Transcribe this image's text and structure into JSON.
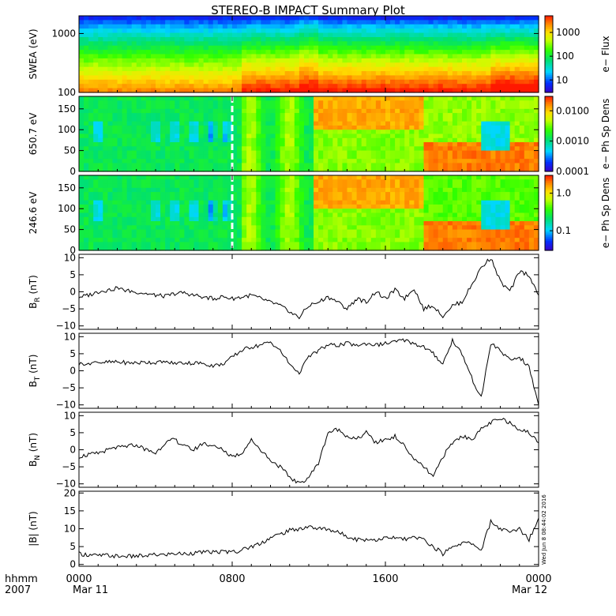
{
  "title": "STEREO-B IMPACT Summary Plot",
  "footer": {
    "time_label": "hhmm",
    "year_label": "2007",
    "start_date": "Mar 11",
    "end_date": "Mar 12",
    "timestamp": "Wed Jun 8 08:44:02 2016"
  },
  "chart_data": [
    {
      "type": "heatmap",
      "panel": "swea",
      "ylabel": "SWEA (eV)",
      "yscale": "log",
      "ylim": [
        100,
        2000
      ],
      "yticks": [
        {
          "v": 100,
          "label": "100"
        },
        {
          "v": 1000,
          "label": "1000"
        }
      ],
      "colorbar": {
        "label": "e− Flux",
        "scale": "log",
        "range": [
          3,
          5000
        ],
        "ticks": [
          {
            "v": 10,
            "label": "10"
          },
          {
            "v": 100,
            "label": "100"
          },
          {
            "v": 1000,
            "label": "1000"
          }
        ]
      },
      "grid": false
    },
    {
      "type": "heatmap",
      "panel": "pad650",
      "ylabel": "650.7 eV",
      "ylim": [
        0,
        180
      ],
      "yticks": [
        {
          "v": 0,
          "label": "0"
        },
        {
          "v": 50,
          "label": "50"
        },
        {
          "v": 100,
          "label": "100"
        },
        {
          "v": 150,
          "label": "150"
        }
      ],
      "colorbar": {
        "label": "e− Ph Sp Dens",
        "scale": "log",
        "range": [
          0.0001,
          0.03
        ],
        "ticks": [
          {
            "v": 0.0001,
            "label": "0.0001"
          },
          {
            "v": 0.001,
            "label": "0.0010"
          },
          {
            "v": 0.01,
            "label": "0.0100"
          }
        ]
      },
      "data_gap_hour": 8.0
    },
    {
      "type": "heatmap",
      "panel": "pad246",
      "ylabel": "246.6 eV",
      "ylim": [
        0,
        180
      ],
      "yticks": [
        {
          "v": 0,
          "label": "0"
        },
        {
          "v": 50,
          "label": "50"
        },
        {
          "v": 100,
          "label": "100"
        },
        {
          "v": 150,
          "label": "150"
        }
      ],
      "colorbar": {
        "label": "e− Ph Sp Dens",
        "scale": "log",
        "range": [
          0.03,
          3
        ],
        "ticks": [
          {
            "v": 0.1,
            "label": "0.1"
          },
          {
            "v": 1.0,
            "label": "1.0"
          }
        ]
      },
      "data_gap_hour": 8.0
    },
    {
      "type": "line",
      "panel": "br",
      "ylabel": "B_R (nT)",
      "ylim": [
        -11,
        11
      ],
      "yticks": [
        {
          "v": -10,
          "label": "−10"
        },
        {
          "v": -5,
          "label": "−5"
        },
        {
          "v": 0,
          "label": "0"
        },
        {
          "v": 5,
          "label": "5"
        },
        {
          "v": 10,
          "label": "10"
        }
      ],
      "x_hours": [
        0,
        0.5,
        1,
        1.5,
        2,
        2.5,
        3,
        3.5,
        4,
        4.5,
        5,
        5.5,
        6,
        6.5,
        7,
        7.5,
        8,
        8.5,
        9,
        9.5,
        10,
        10.5,
        11,
        11.5,
        12,
        12.5,
        13,
        13.5,
        14,
        14.5,
        15,
        15.5,
        16,
        16.5,
        17,
        17.5,
        18,
        18.5,
        19,
        19.5,
        20,
        20.5,
        21,
        21.5,
        22,
        22.5,
        23,
        23.5,
        24
      ],
      "values": [
        -1.5,
        -1,
        0,
        0.5,
        1,
        0.3,
        0,
        -0.5,
        -1,
        -1.3,
        -0.5,
        -0.3,
        -1,
        -1.5,
        -2,
        -1.5,
        -2,
        -1.5,
        -1,
        -2,
        -3,
        -4,
        -6,
        -7.5,
        -4,
        -3,
        -1.5,
        -3,
        -5,
        -2,
        -3,
        0,
        -2,
        0.5,
        -2,
        1,
        -5,
        -4,
        -7,
        -4,
        -3,
        2,
        7,
        10,
        3,
        0,
        6,
        5,
        -1
      ],
      "legend": "none"
    },
    {
      "type": "line",
      "panel": "bt",
      "ylabel": "B_T (nT)",
      "ylim": [
        -11,
        11
      ],
      "yticks": [
        {
          "v": -10,
          "label": "−10"
        },
        {
          "v": -5,
          "label": "−5"
        },
        {
          "v": 0,
          "label": "0"
        },
        {
          "v": 5,
          "label": "5"
        },
        {
          "v": 10,
          "label": "10"
        }
      ],
      "x_hours": [
        0,
        0.5,
        1,
        1.5,
        2,
        2.5,
        3,
        3.5,
        4,
        4.5,
        5,
        5.5,
        6,
        6.5,
        7,
        7.5,
        8,
        8.5,
        9,
        9.5,
        10,
        10.5,
        11,
        11.5,
        12,
        12.5,
        13,
        13.5,
        14,
        14.5,
        15,
        15.5,
        16,
        16.5,
        17,
        17.5,
        18,
        18.5,
        19,
        19.5,
        20,
        20.5,
        21,
        21.5,
        22,
        22.5,
        23,
        23.5,
        24
      ],
      "values": [
        2,
        2.3,
        2.5,
        2.5,
        2.5,
        2.4,
        2.3,
        2.5,
        2.5,
        2.4,
        2.3,
        2.3,
        2.3,
        2.2,
        1.5,
        2,
        4,
        6,
        7,
        7.5,
        8.5,
        6,
        2,
        -0.5,
        4,
        6,
        7.5,
        7.5,
        8,
        7.5,
        8,
        7.5,
        8,
        8.5,
        9,
        8,
        7,
        5,
        2,
        9,
        5,
        -2,
        -8,
        8,
        6,
        3,
        4,
        1,
        -10
      ],
      "legend": "none"
    },
    {
      "type": "line",
      "panel": "bn",
      "ylabel": "B_N (nT)",
      "ylim": [
        -11,
        11
      ],
      "yticks": [
        {
          "v": -10,
          "label": "−10"
        },
        {
          "v": -5,
          "label": "−5"
        },
        {
          "v": 0,
          "label": "0"
        },
        {
          "v": 5,
          "label": "5"
        },
        {
          "v": 10,
          "label": "10"
        }
      ],
      "x_hours": [
        0,
        0.5,
        1,
        1.5,
        2,
        2.5,
        3,
        3.5,
        4,
        4.5,
        5,
        5.5,
        6,
        6.5,
        7,
        7.5,
        8,
        8.5,
        9,
        9.5,
        10,
        10.5,
        11,
        11.5,
        12,
        12.5,
        13,
        13.5,
        14,
        14.5,
        15,
        15.5,
        16,
        16.5,
        17,
        17.5,
        18,
        18.5,
        19,
        19.5,
        20,
        20.5,
        21,
        21.5,
        22,
        22.5,
        23,
        23.5,
        24
      ],
      "values": [
        -2,
        -1.5,
        -1,
        0,
        0.5,
        1,
        1.5,
        0,
        -1,
        2,
        3,
        1,
        0,
        2,
        1,
        0,
        -2,
        -1,
        3,
        0,
        -3,
        -5,
        -8,
        -10,
        -8,
        -4,
        5,
        6,
        4,
        3,
        5,
        2,
        3,
        4,
        1,
        -3,
        -5,
        -8,
        -2,
        2,
        4,
        3,
        6,
        8,
        9,
        8,
        6,
        5,
        2
      ],
      "legend": "none"
    },
    {
      "type": "line",
      "panel": "bmag",
      "ylabel": "|B| (nT)",
      "ylim": [
        -0.5,
        20.5
      ],
      "yticks": [
        {
          "v": 0,
          "label": "0"
        },
        {
          "v": 5,
          "label": "5"
        },
        {
          "v": 10,
          "label": "10"
        },
        {
          "v": 15,
          "label": "15"
        },
        {
          "v": 20,
          "label": "20"
        }
      ],
      "x_hours": [
        0,
        0.5,
        1,
        1.5,
        2,
        2.5,
        3,
        3.5,
        4,
        4.5,
        5,
        5.5,
        6,
        6.5,
        7,
        7.5,
        8,
        8.5,
        9,
        9.5,
        10,
        10.5,
        11,
        11.5,
        12,
        12.5,
        13,
        13.5,
        14,
        14.5,
        15,
        15.5,
        16,
        16.5,
        17,
        17.5,
        18,
        18.5,
        19,
        19.5,
        20,
        20.5,
        21,
        21.5,
        22,
        22.5,
        23,
        23.5,
        24
      ],
      "values": [
        3,
        2.7,
        2.5,
        2.5,
        2.3,
        2.2,
        2.3,
        2.5,
        2.7,
        2.8,
        3,
        3,
        3.2,
        3.3,
        3.5,
        3.6,
        3.5,
        4,
        5,
        6,
        7.5,
        8.5,
        9.5,
        10,
        10.5,
        10,
        10,
        9,
        8,
        7,
        7,
        7,
        7.3,
        7.5,
        7,
        7.5,
        7,
        5,
        3,
        5,
        6,
        6,
        4,
        12,
        10,
        9,
        10,
        7,
        13
      ],
      "legend": "none"
    }
  ],
  "xaxis": {
    "range_hours": [
      0,
      24
    ],
    "ticks": [
      {
        "h": 0,
        "label": "0000"
      },
      {
        "h": 8,
        "label": "0800"
      },
      {
        "h": 16,
        "label": "1600"
      },
      {
        "h": 24,
        "label": "0000"
      }
    ]
  },
  "colors": {
    "frame": "#000000",
    "line": "#000000",
    "background": "#ffffff"
  }
}
